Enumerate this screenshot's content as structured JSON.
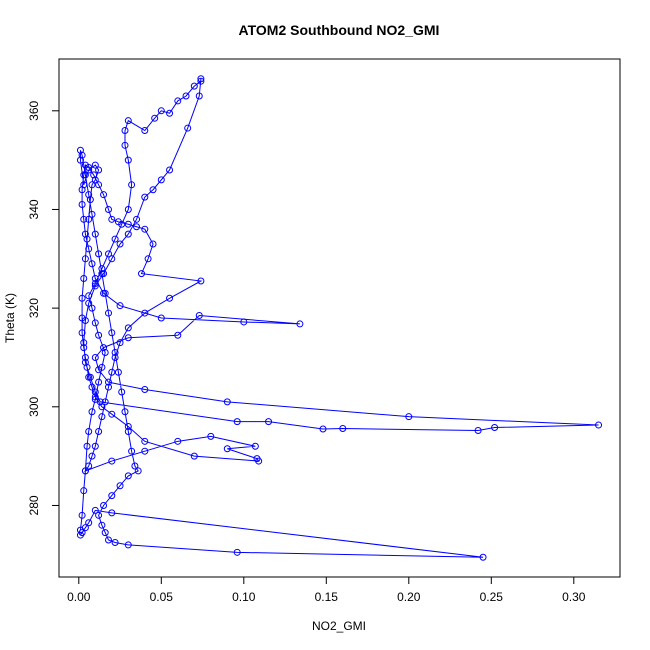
{
  "chart_data": {
    "type": "line",
    "title": "ATOM2 Southbound NO2_GMI",
    "xlabel": "NO2_GMI",
    "ylabel": "Theta (K)",
    "xlim": [
      -0.012,
      0.328
    ],
    "ylim": [
      265.5,
      370.5
    ],
    "xticks": [
      0,
      0.05,
      0.1,
      0.15,
      0.2,
      0.25,
      0.3
    ],
    "xtick_labels": [
      "0.00",
      "0.05",
      "0.10",
      "0.15",
      "0.20",
      "0.25",
      "0.30"
    ],
    "yticks": [
      280,
      300,
      320,
      340,
      360
    ],
    "ytick_labels": [
      "280",
      "300",
      "320",
      "340",
      "360"
    ],
    "grid": false,
    "legend": "none",
    "series": [
      {
        "color": "#0000ff",
        "marker": "open-circle",
        "points": [
          [
            0.001,
            275.0
          ],
          [
            0.002,
            278.0
          ],
          [
            0.003,
            283.0
          ],
          [
            0.004,
            287.0
          ],
          [
            0.005,
            292.0
          ],
          [
            0.006,
            295.0
          ],
          [
            0.008,
            299.0
          ],
          [
            0.01,
            301.5
          ],
          [
            0.012,
            305.0
          ],
          [
            0.014,
            308.0
          ],
          [
            0.016,
            311.0
          ],
          [
            0.012,
            314.5
          ],
          [
            0.01,
            317.0
          ],
          [
            0.008,
            320.0
          ],
          [
            0.006,
            322.5
          ],
          [
            0.01,
            325.0
          ],
          [
            0.014,
            328.0
          ],
          [
            0.018,
            331.0
          ],
          [
            0.022,
            334.0
          ],
          [
            0.026,
            337.0
          ],
          [
            0.03,
            340.0
          ],
          [
            0.032,
            345.0
          ],
          [
            0.03,
            350.0
          ],
          [
            0.028,
            353.0
          ],
          [
            0.028,
            356.0
          ],
          [
            0.03,
            358.0
          ],
          [
            0.04,
            356.0
          ],
          [
            0.046,
            358.5
          ],
          [
            0.05,
            360.0
          ],
          [
            0.055,
            359.5
          ],
          [
            0.06,
            362.0
          ],
          [
            0.065,
            363.0
          ],
          [
            0.07,
            365.0
          ],
          [
            0.074,
            366.0
          ],
          [
            0.074,
            366.5
          ],
          [
            0.073,
            363.0
          ],
          [
            0.066,
            356.5
          ],
          [
            0.055,
            348.0
          ],
          [
            0.05,
            346.0
          ],
          [
            0.045,
            344.0
          ],
          [
            0.04,
            342.5
          ],
          [
            0.035,
            338.0
          ],
          [
            0.03,
            335.0
          ],
          [
            0.025,
            333.0
          ],
          [
            0.02,
            330.0
          ],
          [
            0.015,
            327.0
          ],
          [
            0.01,
            324.5
          ],
          [
            0.006,
            321.0
          ],
          [
            0.004,
            317.5
          ],
          [
            0.003,
            313.0
          ],
          [
            0.004,
            309.0
          ],
          [
            0.007,
            306.0
          ],
          [
            0.01,
            303.0
          ],
          [
            0.013,
            301.0
          ],
          [
            0.096,
            297.0
          ],
          [
            0.115,
            297.0
          ],
          [
            0.148,
            295.5
          ],
          [
            0.16,
            295.6
          ],
          [
            0.242,
            295.2
          ],
          [
            0.252,
            295.8
          ],
          [
            0.315,
            296.3
          ],
          [
            0.2,
            298.0
          ],
          [
            0.09,
            301.0
          ],
          [
            0.04,
            303.5
          ],
          [
            0.018,
            305.0
          ],
          [
            0.012,
            307.5
          ],
          [
            0.01,
            310.0
          ],
          [
            0.015,
            312.0
          ],
          [
            0.03,
            314.0
          ],
          [
            0.06,
            314.5
          ],
          [
            0.073,
            318.5
          ],
          [
            0.134,
            316.8
          ],
          [
            0.1,
            317.2
          ],
          [
            0.05,
            318.0
          ],
          [
            0.025,
            320.5
          ],
          [
            0.015,
            323.0
          ],
          [
            0.01,
            326.0
          ],
          [
            0.008,
            329.0
          ],
          [
            0.006,
            332.0
          ],
          [
            0.004,
            335.0
          ],
          [
            0.003,
            338.0
          ],
          [
            0.002,
            341.0
          ],
          [
            0.002,
            344.0
          ],
          [
            0.003,
            347.0
          ],
          [
            0.004,
            349.0
          ],
          [
            0.006,
            348.5
          ],
          [
            0.009,
            347.0
          ],
          [
            0.012,
            345.0
          ],
          [
            0.015,
            343.0
          ],
          [
            0.018,
            340.0
          ],
          [
            0.02,
            338.0
          ],
          [
            0.024,
            337.5
          ],
          [
            0.03,
            337.0
          ],
          [
            0.035,
            336.5
          ],
          [
            0.04,
            336.0
          ],
          [
            0.045,
            333.0
          ],
          [
            0.042,
            330.0
          ],
          [
            0.038,
            327.0
          ],
          [
            0.074,
            325.5
          ],
          [
            0.055,
            322.0
          ],
          [
            0.04,
            319.0
          ],
          [
            0.03,
            316.0
          ],
          [
            0.025,
            313.0
          ],
          [
            0.022,
            310.0
          ],
          [
            0.02,
            307.0
          ],
          [
            0.018,
            304.0
          ],
          [
            0.016,
            301.0
          ],
          [
            0.014,
            298.0
          ],
          [
            0.012,
            295.0
          ],
          [
            0.01,
            292.0
          ],
          [
            0.008,
            290.0
          ],
          [
            0.006,
            288.0
          ],
          [
            0.004,
            287.0
          ],
          [
            0.02,
            289.0
          ],
          [
            0.04,
            291.0
          ],
          [
            0.06,
            293.0
          ],
          [
            0.08,
            294.0
          ],
          [
            0.107,
            292.0
          ],
          [
            0.09,
            291.5
          ],
          [
            0.108,
            289.5
          ],
          [
            0.109,
            289.0
          ],
          [
            0.07,
            290.0
          ],
          [
            0.04,
            293.0
          ],
          [
            0.03,
            296.0
          ],
          [
            0.02,
            298.5
          ],
          [
            0.014,
            300.0
          ],
          [
            0.01,
            302.0
          ],
          [
            0.008,
            304.0
          ],
          [
            0.006,
            306.0
          ],
          [
            0.005,
            308.0
          ],
          [
            0.004,
            310.0
          ],
          [
            0.003,
            312.0
          ],
          [
            0.002,
            315.0
          ],
          [
            0.002,
            318.0
          ],
          [
            0.002,
            322.0
          ],
          [
            0.003,
            326.0
          ],
          [
            0.004,
            330.0
          ],
          [
            0.005,
            334.0
          ],
          [
            0.006,
            338.0
          ],
          [
            0.007,
            342.0
          ],
          [
            0.008,
            345.0
          ],
          [
            0.01,
            346.0
          ],
          [
            0.012,
            348.0
          ],
          [
            0.01,
            349.0
          ],
          [
            0.006,
            348.0
          ],
          [
            0.003,
            345.0
          ],
          [
            0.001,
            350.0
          ],
          [
            0.001,
            352.0
          ],
          [
            0.002,
            351.0
          ],
          [
            0.004,
            347.0
          ],
          [
            0.006,
            343.0
          ],
          [
            0.008,
            339.0
          ],
          [
            0.01,
            335.0
          ],
          [
            0.012,
            331.0
          ],
          [
            0.014,
            327.0
          ],
          [
            0.016,
            323.0
          ],
          [
            0.018,
            319.0
          ],
          [
            0.02,
            315.0
          ],
          [
            0.022,
            311.0
          ],
          [
            0.024,
            307.0
          ],
          [
            0.026,
            303.0
          ],
          [
            0.028,
            299.0
          ],
          [
            0.03,
            295.0
          ],
          [
            0.032,
            291.0
          ],
          [
            0.034,
            288.0
          ],
          [
            0.036,
            287.0
          ],
          [
            0.03,
            286.0
          ],
          [
            0.025,
            284.0
          ],
          [
            0.02,
            282.0
          ],
          [
            0.015,
            280.0
          ],
          [
            0.012,
            278.0
          ],
          [
            0.014,
            276.0
          ],
          [
            0.016,
            274.5
          ],
          [
            0.018,
            273.0
          ],
          [
            0.022,
            272.5
          ],
          [
            0.03,
            272.0
          ],
          [
            0.096,
            270.5
          ],
          [
            0.245,
            269.5
          ],
          [
            0.02,
            278.5
          ],
          [
            0.01,
            279.0
          ],
          [
            0.006,
            276.5
          ],
          [
            0.004,
            275.5
          ],
          [
            0.002,
            274.5
          ],
          [
            0.001,
            274.0
          ]
        ]
      }
    ]
  }
}
